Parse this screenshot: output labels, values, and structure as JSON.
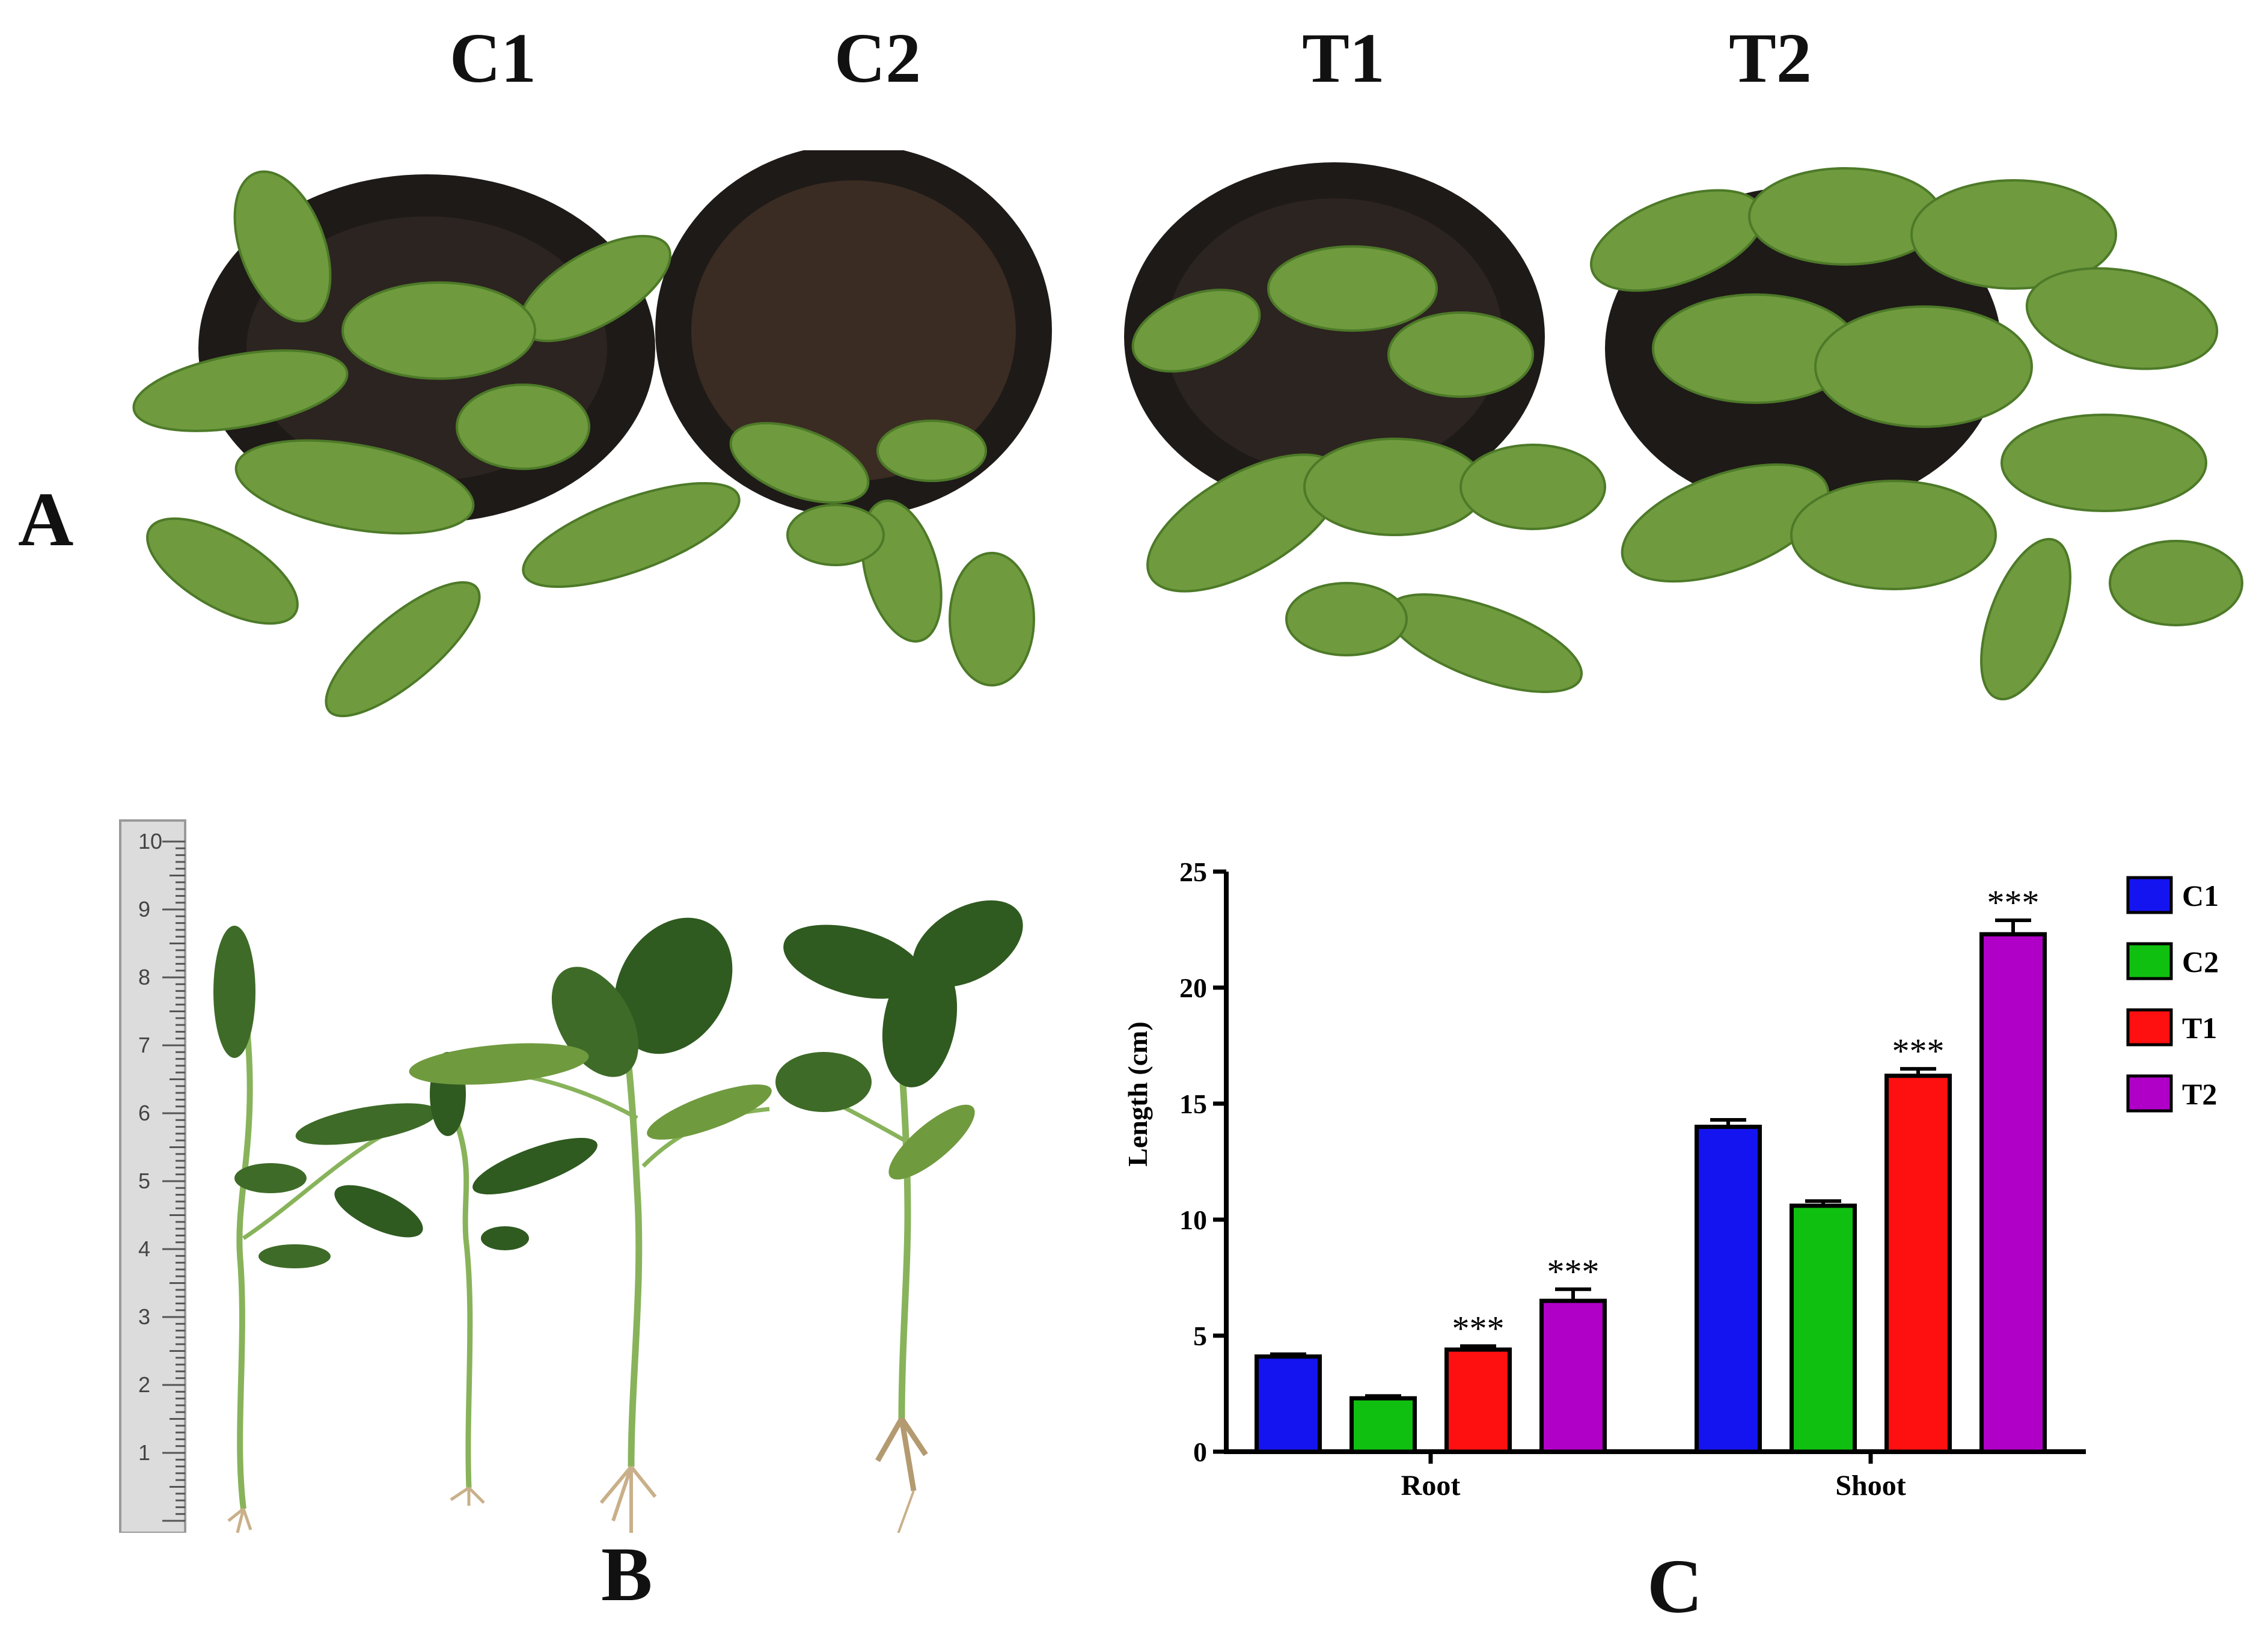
{
  "panels": {
    "a": {
      "letter": "A",
      "columns": [
        "C1",
        "C2",
        "T1",
        "T2"
      ]
    },
    "b": {
      "letter": "B",
      "ruler_numbers": [
        "1",
        "2",
        "3",
        "4",
        "5",
        "6",
        "7",
        "8",
        "9",
        "10"
      ]
    },
    "c": {
      "letter": "C"
    }
  },
  "colors": {
    "C1": "#1414f0",
    "C2": "#10c010",
    "T1": "#ff1010",
    "T2": "#b000c8",
    "leaf": "#6f9a3e",
    "pot": "#1e1a18"
  },
  "chart_data": {
    "type": "bar",
    "categories": [
      "Root",
      "Shoot"
    ],
    "series": [
      {
        "name": "C1",
        "values": [
          4.1,
          14.0
        ],
        "errors": [
          0.1,
          0.3
        ],
        "significance": [
          "",
          ""
        ]
      },
      {
        "name": "C2",
        "values": [
          2.3,
          10.6
        ],
        "errors": [
          0.1,
          0.2
        ],
        "significance": [
          "",
          ""
        ]
      },
      {
        "name": "T1",
        "values": [
          4.4,
          16.2
        ],
        "errors": [
          0.15,
          0.3
        ],
        "significance": [
          "***",
          "***"
        ]
      },
      {
        "name": "T2",
        "values": [
          6.5,
          22.3
        ],
        "errors": [
          0.5,
          0.6
        ],
        "significance": [
          "***",
          "***"
        ]
      }
    ],
    "ylabel": "Length (cm)",
    "xlabel": "",
    "ylim": [
      0,
      25
    ],
    "yticks": [
      0,
      5,
      10,
      15,
      20,
      25
    ],
    "legend": "right",
    "grid": false
  }
}
